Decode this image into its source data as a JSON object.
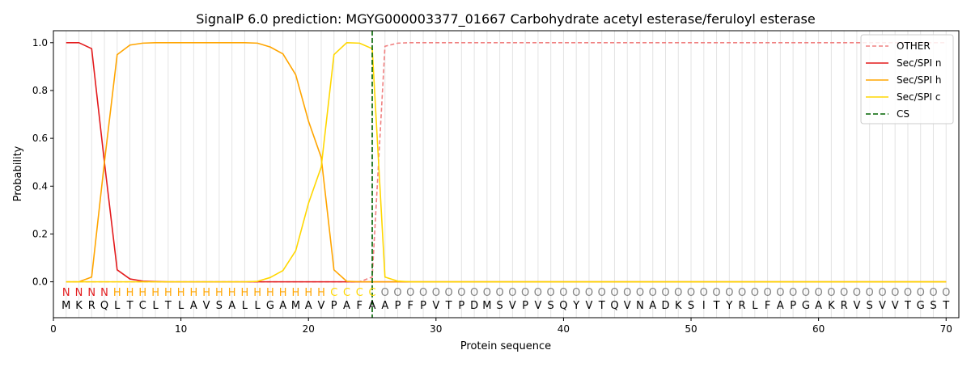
{
  "chart_data": {
    "type": "line",
    "title": "SignalP 6.0 prediction: MGYG000003377_01667 Carbohydrate acetyl esterase/feruloyl esterase",
    "xlabel": "Protein sequence",
    "ylabel": "Probability",
    "xlim": [
      0,
      71
    ],
    "ylim": [
      -0.15,
      1.05
    ],
    "xticks": [
      0,
      10,
      20,
      30,
      40,
      50,
      60,
      70
    ],
    "yticks": [
      0.0,
      0.2,
      0.4,
      0.6,
      0.8,
      1.0
    ],
    "grid": "vertical lines at each residue position",
    "legend_position": "top-right",
    "sequence": [
      "M",
      "K",
      "R",
      "Q",
      "L",
      "T",
      "C",
      "L",
      "T",
      "L",
      "A",
      "V",
      "S",
      "A",
      "L",
      "L",
      "G",
      "A",
      "M",
      "A",
      "V",
      "P",
      "A",
      "F",
      "A",
      "A",
      "P",
      "F",
      "P",
      "V",
      "T",
      "P",
      "D",
      "M",
      "S",
      "V",
      "P",
      "V",
      "S",
      "Q",
      "Y",
      "V",
      "T",
      "Q",
      "V",
      "N",
      "A",
      "D",
      "K",
      "S",
      "I",
      "T",
      "Y",
      "R",
      "L",
      "F",
      "A",
      "P",
      "G",
      "A",
      "K",
      "R",
      "V",
      "S",
      "V",
      "V",
      "T",
      "G",
      "S",
      "T"
    ],
    "labels": [
      "N",
      "N",
      "N",
      "N",
      "H",
      "H",
      "H",
      "H",
      "H",
      "H",
      "H",
      "H",
      "H",
      "H",
      "H",
      "H",
      "H",
      "H",
      "H",
      "H",
      "H",
      "C",
      "C",
      "C",
      "C",
      "O",
      "O",
      "O",
      "O",
      "O",
      "O",
      "O",
      "O",
      "O",
      "O",
      "O",
      "O",
      "O",
      "O",
      "O",
      "O",
      "O",
      "O",
      "O",
      "O",
      "O",
      "O",
      "O",
      "O",
      "O",
      "O",
      "O",
      "O",
      "O",
      "O",
      "O",
      "O",
      "O",
      "O",
      "O",
      "O",
      "O",
      "O",
      "O",
      "O",
      "O",
      "O",
      "O",
      "O",
      "O"
    ],
    "label_colors": {
      "N": "#e31a1c",
      "H": "#ffa500",
      "C": "#ffd700",
      "O": "#808080"
    },
    "cs_position": 25,
    "series": [
      {
        "name": "OTHER",
        "color": "#f08080",
        "dash": true,
        "values": [
          0,
          0,
          0,
          0,
          0,
          0,
          0,
          0,
          0,
          0,
          0,
          0,
          0,
          0,
          0,
          0,
          0,
          0,
          0,
          0,
          0,
          0,
          0,
          0,
          0.02,
          0.985,
          0.998,
          1,
          1,
          1,
          1,
          1,
          1,
          1,
          1,
          1,
          1,
          1,
          1,
          1,
          1,
          1,
          1,
          1,
          1,
          1,
          1,
          1,
          1,
          1,
          1,
          1,
          1,
          1,
          1,
          1,
          1,
          1,
          1,
          1,
          1,
          1,
          1,
          1,
          1,
          1,
          1,
          1,
          1,
          1
        ]
      },
      {
        "name": "Sec/SPI n",
        "color": "#e31a1c",
        "dash": false,
        "values": [
          1,
          1,
          0.975,
          0.5,
          0.05,
          0.012,
          0.003,
          0.001,
          0,
          0,
          0,
          0,
          0,
          0,
          0,
          0,
          0,
          0,
          0,
          0,
          0,
          0,
          0,
          0,
          0,
          0,
          0,
          0,
          0,
          0,
          0,
          0,
          0,
          0,
          0,
          0,
          0,
          0,
          0,
          0,
          0,
          0,
          0,
          0,
          0,
          0,
          0,
          0,
          0,
          0,
          0,
          0,
          0,
          0,
          0,
          0,
          0,
          0,
          0,
          0,
          0,
          0,
          0,
          0,
          0,
          0,
          0,
          0,
          0,
          0
        ]
      },
      {
        "name": "Sec/SPI h",
        "color": "#ffa500",
        "dash": false,
        "values": [
          0,
          0,
          0.02,
          0.5,
          0.95,
          0.99,
          0.998,
          1,
          1,
          1,
          1,
          1,
          1,
          1,
          1,
          0.998,
          0.982,
          0.953,
          0.866,
          0.672,
          0.52,
          0.05,
          0.002,
          0,
          0,
          0,
          0,
          0,
          0,
          0,
          0,
          0,
          0,
          0,
          0,
          0,
          0,
          0,
          0,
          0,
          0,
          0,
          0,
          0,
          0,
          0,
          0,
          0,
          0,
          0,
          0,
          0,
          0,
          0,
          0,
          0,
          0,
          0,
          0,
          0,
          0,
          0,
          0,
          0,
          0,
          0,
          0,
          0,
          0,
          0
        ]
      },
      {
        "name": "Sec/SPI c",
        "color": "#ffd700",
        "dash": false,
        "values": [
          0,
          0,
          0,
          0,
          0,
          0,
          0,
          0,
          0,
          0,
          0,
          0,
          0,
          0,
          0,
          0.002,
          0.018,
          0.047,
          0.13,
          0.328,
          0.48,
          0.95,
          1,
          0.998,
          0.975,
          0.02,
          0.003,
          0,
          0,
          0,
          0,
          0,
          0,
          0,
          0,
          0,
          0,
          0,
          0,
          0,
          0,
          0,
          0,
          0,
          0,
          0,
          0,
          0,
          0,
          0,
          0,
          0,
          0,
          0,
          0,
          0,
          0,
          0,
          0,
          0,
          0,
          0,
          0,
          0,
          0,
          0,
          0,
          0,
          0,
          0
        ]
      }
    ],
    "cs_legend": {
      "name": "CS",
      "color": "#006400"
    }
  }
}
